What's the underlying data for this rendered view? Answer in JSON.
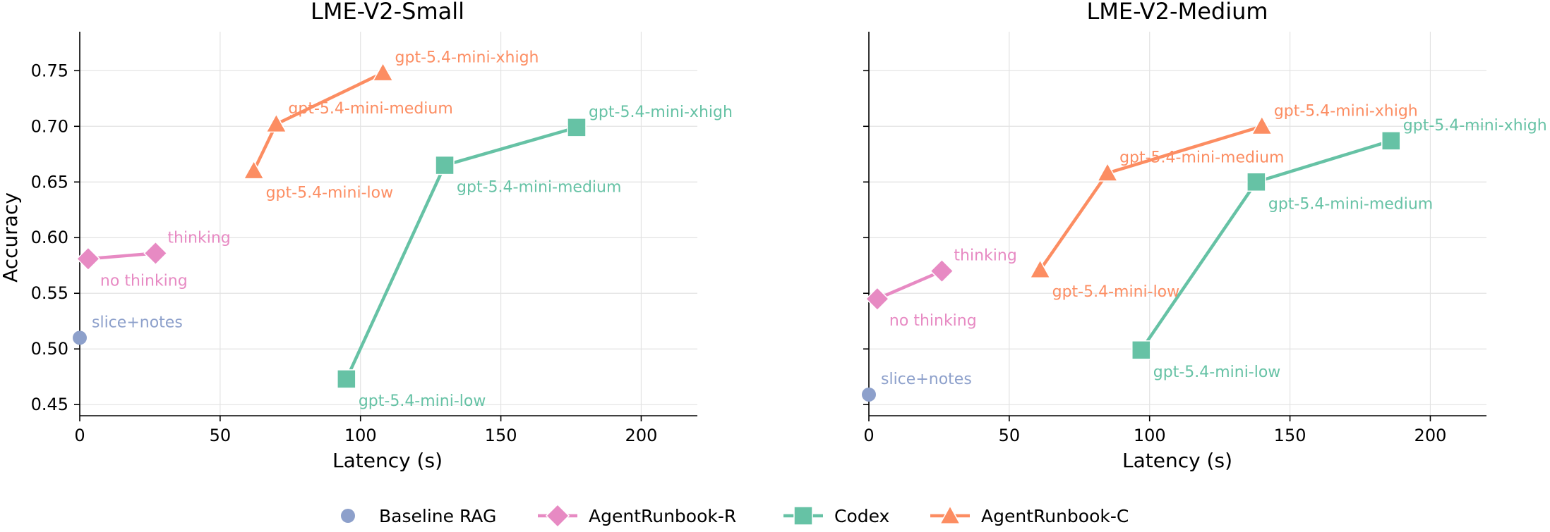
{
  "colors": {
    "baseline": "#8da0cb",
    "agentrunbook_r": "#e78ac3",
    "codex": "#66c2a5",
    "agentrunbook_c": "#fc8d62"
  },
  "legend": {
    "placement": "bottom-center",
    "items": [
      {
        "key": "baseline",
        "label": "Baseline RAG",
        "marker": "circle",
        "line": false
      },
      {
        "key": "agentrunbook_r",
        "label": "AgentRunbook-R",
        "marker": "diamond",
        "line": true
      },
      {
        "key": "codex",
        "label": "Codex",
        "marker": "square",
        "line": true
      },
      {
        "key": "agentrunbook_c",
        "label": "AgentRunbook-C",
        "marker": "triangle",
        "line": true
      }
    ]
  },
  "chart_data": [
    {
      "type": "line",
      "title": "LME-V2-Small",
      "xlabel": "Latency (s)",
      "ylabel": "Accuracy",
      "xlim": [
        0,
        220
      ],
      "ylim": [
        0.44,
        0.785
      ],
      "xticks": [
        0,
        50,
        100,
        150,
        200
      ],
      "yticks": [
        0.45,
        0.5,
        0.55,
        0.6,
        0.65,
        0.7,
        0.75
      ],
      "grid": true,
      "series": [
        {
          "name": "Baseline RAG",
          "key": "baseline",
          "marker": "circle",
          "line": false,
          "points": [
            {
              "x": 0,
              "y": 0.51,
              "label": "slice+notes",
              "label_pos": "upper-right"
            }
          ]
        },
        {
          "name": "AgentRunbook-R",
          "key": "agentrunbook_r",
          "marker": "diamond",
          "line": true,
          "points": [
            {
              "x": 3,
              "y": 0.581,
              "label": "no thinking",
              "label_pos": "lower-right"
            },
            {
              "x": 27,
              "y": 0.586,
              "label": "thinking",
              "label_pos": "upper-right"
            }
          ]
        },
        {
          "name": "Codex",
          "key": "codex",
          "marker": "square",
          "line": true,
          "points": [
            {
              "x": 95,
              "y": 0.473,
              "label": "gpt-5.4-mini-low",
              "label_pos": "lower-right"
            },
            {
              "x": 130,
              "y": 0.665,
              "label": "gpt-5.4-mini-medium",
              "label_pos": "lower-right"
            },
            {
              "x": 177,
              "y": 0.699,
              "label": "gpt-5.4-mini-xhigh",
              "label_pos": "upper-right"
            }
          ]
        },
        {
          "name": "AgentRunbook-C",
          "key": "agentrunbook_c",
          "marker": "triangle",
          "line": true,
          "points": [
            {
              "x": 62,
              "y": 0.66,
              "label": "gpt-5.4-mini-low",
              "label_pos": "lower-right"
            },
            {
              "x": 70,
              "y": 0.702,
              "label": "gpt-5.4-mini-medium",
              "label_pos": "upper-right"
            },
            {
              "x": 108,
              "y": 0.748,
              "label": "gpt-5.4-mini-xhigh",
              "label_pos": "upper-right"
            }
          ]
        }
      ]
    },
    {
      "type": "line",
      "title": "LME-V2-Medium",
      "xlabel": "Latency (s)",
      "ylabel": "",
      "xlim": [
        0,
        220
      ],
      "ylim": [
        0.44,
        0.785
      ],
      "xticks": [
        0,
        50,
        100,
        150,
        200
      ],
      "yticks": [
        0.45,
        0.5,
        0.55,
        0.6,
        0.65,
        0.7,
        0.75
      ],
      "grid": true,
      "series": [
        {
          "name": "Baseline RAG",
          "key": "baseline",
          "marker": "circle",
          "line": false,
          "points": [
            {
              "x": 0,
              "y": 0.459,
              "label": "slice+notes",
              "label_pos": "upper-right"
            }
          ]
        },
        {
          "name": "AgentRunbook-R",
          "key": "agentrunbook_r",
          "marker": "diamond",
          "line": true,
          "points": [
            {
              "x": 3,
              "y": 0.545,
              "label": "no thinking",
              "label_pos": "lower-right"
            },
            {
              "x": 26,
              "y": 0.57,
              "label": "thinking",
              "label_pos": "upper-right"
            }
          ]
        },
        {
          "name": "Codex",
          "key": "codex",
          "marker": "square",
          "line": true,
          "points": [
            {
              "x": 97,
              "y": 0.499,
              "label": "gpt-5.4-mini-low",
              "label_pos": "lower-right"
            },
            {
              "x": 138,
              "y": 0.65,
              "label": "gpt-5.4-mini-medium",
              "label_pos": "lower-right"
            },
            {
              "x": 186,
              "y": 0.687,
              "label": "gpt-5.4-mini-xhigh",
              "label_pos": "upper-right"
            }
          ]
        },
        {
          "name": "AgentRunbook-C",
          "key": "agentrunbook_c",
          "marker": "triangle",
          "line": true,
          "points": [
            {
              "x": 61,
              "y": 0.571,
              "label": "gpt-5.4-mini-low",
              "label_pos": "lower-right"
            },
            {
              "x": 85,
              "y": 0.658,
              "label": "gpt-5.4-mini-medium",
              "label_pos": "upper-right"
            },
            {
              "x": 140,
              "y": 0.7,
              "label": "gpt-5.4-mini-xhigh",
              "label_pos": "upper-right"
            }
          ]
        }
      ]
    }
  ]
}
